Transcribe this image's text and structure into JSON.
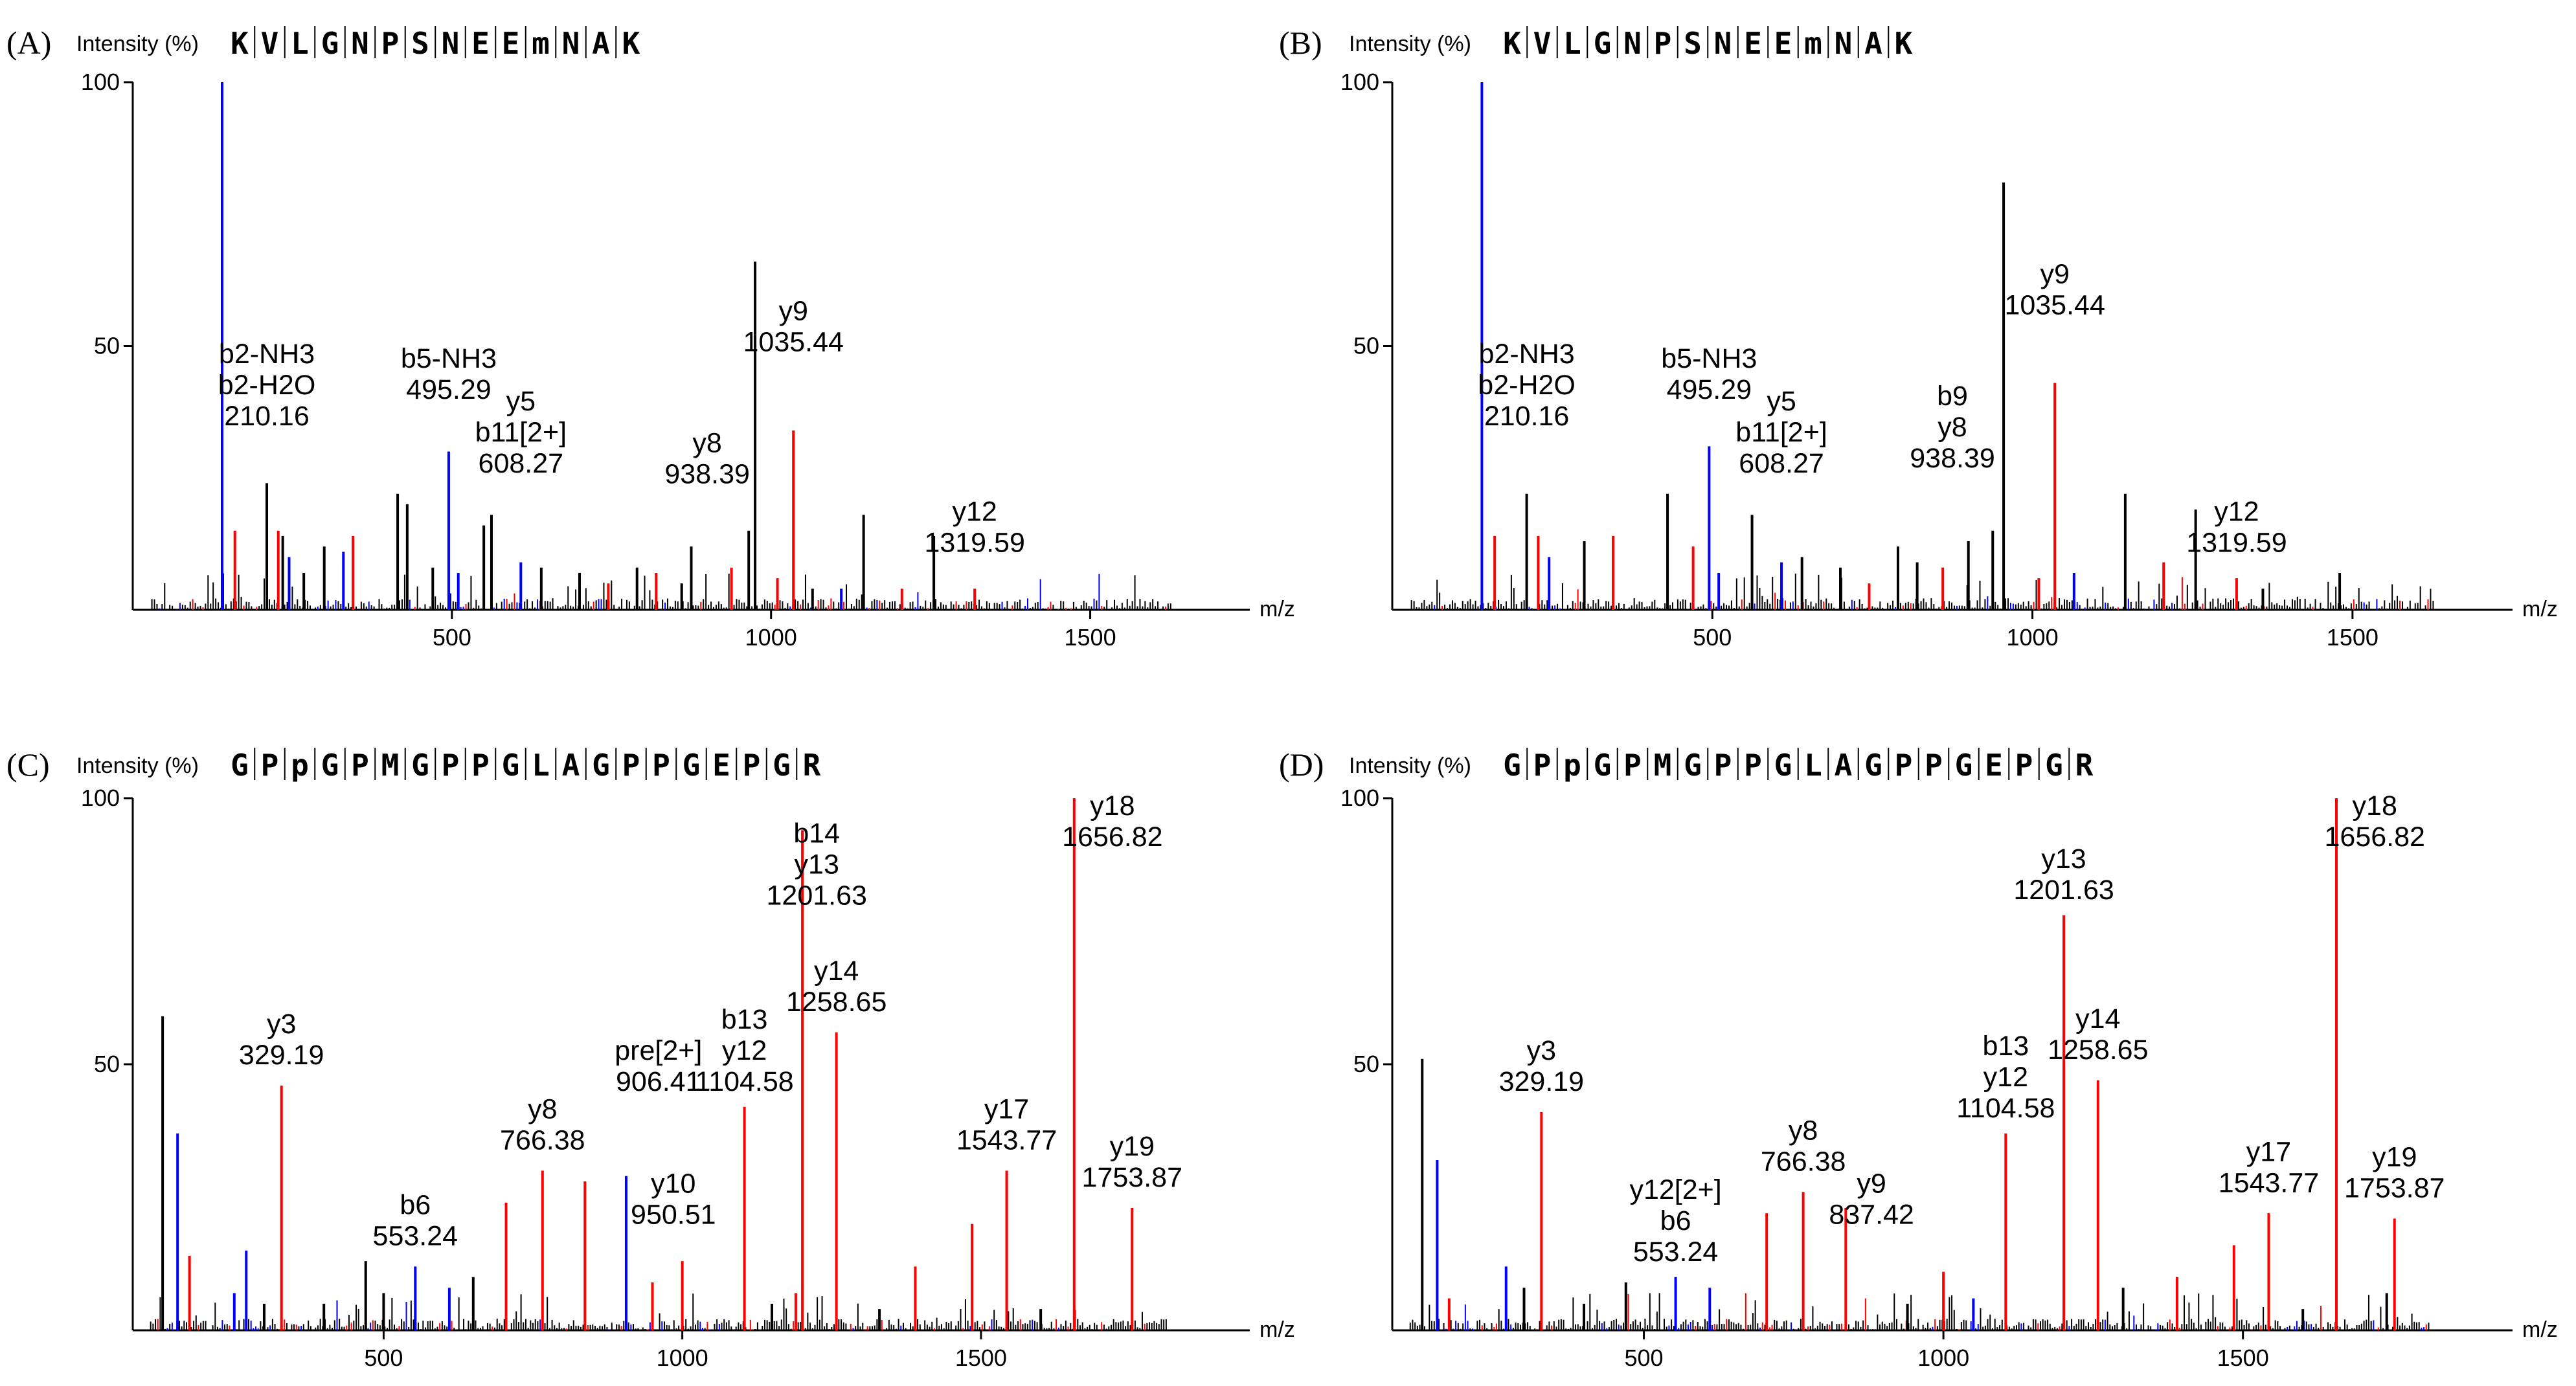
{
  "colors": {
    "b_ion": "#0000ff",
    "y_ion": "#ff0000",
    "unassigned": "#000000"
  },
  "chart_data": [
    {
      "panel_label": "(A)",
      "type": "bar",
      "ylabel": "Intensity (%)",
      "xlabel": "m/z",
      "sequence": [
        "K",
        "V",
        "L",
        "G",
        "N",
        "P",
        "S",
        "N",
        "E",
        "E",
        "m",
        "N",
        "A",
        "K"
      ],
      "xlim": [
        0,
        1750
      ],
      "ylim": [
        0,
        100
      ],
      "xticks": [
        500,
        1000,
        1500
      ],
      "yticks": [
        50,
        100
      ],
      "peaks": [
        {
          "mz": 140,
          "y": 100,
          "c": "b"
        },
        {
          "mz": 160,
          "y": 15,
          "c": "y"
        },
        {
          "mz": 210,
          "y": 24,
          "c": "k"
        },
        {
          "mz": 228,
          "y": 15,
          "c": "y"
        },
        {
          "mz": 235,
          "y": 14,
          "c": "k"
        },
        {
          "mz": 245,
          "y": 10,
          "c": "b"
        },
        {
          "mz": 268,
          "y": 7,
          "c": "k"
        },
        {
          "mz": 300,
          "y": 12,
          "c": "k"
        },
        {
          "mz": 330,
          "y": 11,
          "c": "b"
        },
        {
          "mz": 345,
          "y": 14,
          "c": "y"
        },
        {
          "mz": 415,
          "y": 22,
          "c": "k"
        },
        {
          "mz": 430,
          "y": 20,
          "c": "k"
        },
        {
          "mz": 470,
          "y": 8,
          "c": "k"
        },
        {
          "mz": 495,
          "y": 30,
          "c": "b"
        },
        {
          "mz": 510,
          "y": 7,
          "c": "b"
        },
        {
          "mz": 550,
          "y": 16,
          "c": "k"
        },
        {
          "mz": 562,
          "y": 18,
          "c": "k"
        },
        {
          "mz": 608,
          "y": 9,
          "c": "b"
        },
        {
          "mz": 640,
          "y": 8,
          "c": "k"
        },
        {
          "mz": 700,
          "y": 7,
          "c": "k"
        },
        {
          "mz": 745,
          "y": 5,
          "c": "y"
        },
        {
          "mz": 790,
          "y": 8,
          "c": "k"
        },
        {
          "mz": 820,
          "y": 7,
          "c": "y"
        },
        {
          "mz": 860,
          "y": 5,
          "c": "k"
        },
        {
          "mz": 875,
          "y": 12,
          "c": "k"
        },
        {
          "mz": 938,
          "y": 8,
          "c": "y"
        },
        {
          "mz": 965,
          "y": 15,
          "c": "k"
        },
        {
          "mz": 975,
          "y": 66,
          "c": "k"
        },
        {
          "mz": 1010,
          "y": 6,
          "c": "y"
        },
        {
          "mz": 1035,
          "y": 34,
          "c": "y"
        },
        {
          "mz": 1065,
          "y": 4,
          "c": "k"
        },
        {
          "mz": 1110,
          "y": 4,
          "c": "b"
        },
        {
          "mz": 1145,
          "y": 18,
          "c": "k"
        },
        {
          "mz": 1205,
          "y": 4,
          "c": "y"
        },
        {
          "mz": 1255,
          "y": 14,
          "c": "k"
        },
        {
          "mz": 1319,
          "y": 4,
          "c": "y"
        }
      ],
      "annotations": [
        {
          "lines": [
            "b2-NH3",
            "b2-H2O",
            "210.16"
          ],
          "mz": 210,
          "y": 35
        },
        {
          "lines": [
            "b5-NH3",
            "495.29"
          ],
          "mz": 495,
          "y": 40
        },
        {
          "lines": [
            "y5",
            "b11[2+]",
            "608.27"
          ],
          "mz": 608,
          "y": 26
        },
        {
          "lines": [
            "y8",
            "938.39"
          ],
          "mz": 900,
          "y": 24
        },
        {
          "lines": [
            "y9",
            "1035.44"
          ],
          "mz": 1035,
          "y": 49
        },
        {
          "lines": [
            "y12",
            "1319.59"
          ],
          "mz": 1319,
          "y": 11
        }
      ]
    },
    {
      "panel_label": "(B)",
      "type": "bar",
      "ylabel": "Intensity (%)",
      "xlabel": "m/z",
      "sequence": [
        "K",
        "V",
        "L",
        "G",
        "N",
        "P",
        "S",
        "N",
        "E",
        "E",
        "m",
        "N",
        "A",
        "K"
      ],
      "xlim": [
        0,
        1750
      ],
      "ylim": [
        0,
        100
      ],
      "xticks": [
        500,
        1000,
        1500
      ],
      "yticks": [
        50,
        100
      ],
      "peaks": [
        {
          "mz": 140,
          "y": 100,
          "c": "b"
        },
        {
          "mz": 160,
          "y": 14,
          "c": "y"
        },
        {
          "mz": 210,
          "y": 22,
          "c": "k"
        },
        {
          "mz": 228,
          "y": 14,
          "c": "y"
        },
        {
          "mz": 245,
          "y": 10,
          "c": "b"
        },
        {
          "mz": 300,
          "y": 13,
          "c": "k"
        },
        {
          "mz": 345,
          "y": 14,
          "c": "y"
        },
        {
          "mz": 430,
          "y": 22,
          "c": "k"
        },
        {
          "mz": 470,
          "y": 12,
          "c": "y"
        },
        {
          "mz": 495,
          "y": 31,
          "c": "b"
        },
        {
          "mz": 510,
          "y": 7,
          "c": "b"
        },
        {
          "mz": 562,
          "y": 18,
          "c": "k"
        },
        {
          "mz": 608,
          "y": 9,
          "c": "b"
        },
        {
          "mz": 640,
          "y": 10,
          "c": "k"
        },
        {
          "mz": 700,
          "y": 8,
          "c": "k"
        },
        {
          "mz": 745,
          "y": 5,
          "c": "y"
        },
        {
          "mz": 790,
          "y": 12,
          "c": "k"
        },
        {
          "mz": 820,
          "y": 9,
          "c": "k"
        },
        {
          "mz": 860,
          "y": 8,
          "c": "y"
        },
        {
          "mz": 938,
          "y": 15,
          "c": "k"
        },
        {
          "mz": 900,
          "y": 13,
          "c": "k"
        },
        {
          "mz": 955,
          "y": 81,
          "c": "k"
        },
        {
          "mz": 1010,
          "y": 6,
          "c": "y"
        },
        {
          "mz": 1035,
          "y": 43,
          "c": "y"
        },
        {
          "mz": 1065,
          "y": 7,
          "c": "b"
        },
        {
          "mz": 1145,
          "y": 22,
          "c": "k"
        },
        {
          "mz": 1205,
          "y": 9,
          "c": "y"
        },
        {
          "mz": 1255,
          "y": 19,
          "c": "k"
        },
        {
          "mz": 1319,
          "y": 6,
          "c": "y"
        },
        {
          "mz": 1360,
          "y": 4,
          "c": "k"
        },
        {
          "mz": 1480,
          "y": 7,
          "c": "k"
        }
      ],
      "annotations": [
        {
          "lines": [
            "b2-NH3",
            "b2-H2O",
            "210.16"
          ],
          "mz": 210,
          "y": 35
        },
        {
          "lines": [
            "b5-NH3",
            "495.29"
          ],
          "mz": 495,
          "y": 40
        },
        {
          "lines": [
            "y5",
            "b11[2+]",
            "608.27"
          ],
          "mz": 608,
          "y": 26
        },
        {
          "lines": [
            "b9",
            "y8",
            "938.39"
          ],
          "mz": 875,
          "y": 27
        },
        {
          "lines": [
            "y9",
            "1035.44"
          ],
          "mz": 1035,
          "y": 56
        },
        {
          "lines": [
            "y12",
            "1319.59"
          ],
          "mz": 1319,
          "y": 11
        }
      ]
    },
    {
      "panel_label": "(C)",
      "type": "bar",
      "ylabel": "Intensity (%)",
      "xlabel": "m/z",
      "sequence": [
        "G",
        "P",
        "p",
        "G",
        "P",
        "M",
        "G",
        "P",
        "P",
        "G",
        "L",
        "A",
        "G",
        "P",
        "P",
        "G",
        "E",
        "P",
        "G",
        "R"
      ],
      "xlim": [
        80,
        1950
      ],
      "ylim": [
        0,
        100
      ],
      "xticks": [
        500,
        1000,
        1500
      ],
      "yticks": [
        50,
        100
      ],
      "peaks": [
        {
          "mz": 130,
          "y": 59,
          "c": "k"
        },
        {
          "mz": 155,
          "y": 37,
          "c": "b"
        },
        {
          "mz": 175,
          "y": 14,
          "c": "y"
        },
        {
          "mz": 250,
          "y": 7,
          "c": "b"
        },
        {
          "mz": 270,
          "y": 15,
          "c": "b"
        },
        {
          "mz": 300,
          "y": 5,
          "c": "k"
        },
        {
          "mz": 329,
          "y": 46,
          "c": "y"
        },
        {
          "mz": 400,
          "y": 5,
          "c": "k"
        },
        {
          "mz": 470,
          "y": 13,
          "c": "k"
        },
        {
          "mz": 500,
          "y": 7,
          "c": "k"
        },
        {
          "mz": 553,
          "y": 12,
          "c": "b"
        },
        {
          "mz": 610,
          "y": 8,
          "c": "b"
        },
        {
          "mz": 650,
          "y": 10,
          "c": "k"
        },
        {
          "mz": 705,
          "y": 24,
          "c": "y"
        },
        {
          "mz": 766,
          "y": 30,
          "c": "y"
        },
        {
          "mz": 837,
          "y": 28,
          "c": "y"
        },
        {
          "mz": 906,
          "y": 29,
          "c": "b"
        },
        {
          "mz": 950,
          "y": 9,
          "c": "y"
        },
        {
          "mz": 1000,
          "y": 13,
          "c": "y"
        },
        {
          "mz": 1104,
          "y": 42,
          "c": "y"
        },
        {
          "mz": 1150,
          "y": 5,
          "c": "k"
        },
        {
          "mz": 1190,
          "y": 7,
          "c": "y"
        },
        {
          "mz": 1201,
          "y": 94,
          "c": "y"
        },
        {
          "mz": 1258,
          "y": 56,
          "c": "y"
        },
        {
          "mz": 1330,
          "y": 4,
          "c": "k"
        },
        {
          "mz": 1390,
          "y": 12,
          "c": "y"
        },
        {
          "mz": 1485,
          "y": 20,
          "c": "y"
        },
        {
          "mz": 1543,
          "y": 30,
          "c": "y"
        },
        {
          "mz": 1600,
          "y": 4,
          "c": "k"
        },
        {
          "mz": 1656,
          "y": 100,
          "c": "y"
        },
        {
          "mz": 1753,
          "y": 23,
          "c": "y"
        }
      ],
      "annotations": [
        {
          "lines": [
            "y3",
            "329.19"
          ],
          "mz": 329,
          "y": 50
        },
        {
          "lines": [
            "b6",
            "553.24"
          ],
          "mz": 553,
          "y": 16
        },
        {
          "lines": [
            "y8",
            "766.38"
          ],
          "mz": 766,
          "y": 34
        },
        {
          "lines": [
            "pre[2+]",
            "906.41"
          ],
          "mz": 960,
          "y": 45
        },
        {
          "lines": [
            "y10",
            "950.51"
          ],
          "mz": 985,
          "y": 20
        },
        {
          "lines": [
            "b13",
            "y12",
            "1104.58"
          ],
          "mz": 1104,
          "y": 45
        },
        {
          "lines": [
            "b14",
            "y13",
            "1201.63"
          ],
          "mz": 1225,
          "y": 80
        },
        {
          "lines": [
            "y14",
            "1258.65"
          ],
          "mz": 1258,
          "y": 60
        },
        {
          "lines": [
            "y17",
            "1543.77"
          ],
          "mz": 1543,
          "y": 34
        },
        {
          "lines": [
            "y18",
            "1656.82"
          ],
          "mz": 1720,
          "y": 91
        },
        {
          "lines": [
            "y19",
            "1753.87"
          ],
          "mz": 1753,
          "y": 27
        }
      ]
    },
    {
      "panel_label": "(D)",
      "type": "bar",
      "ylabel": "Intensity (%)",
      "xlabel": "m/z",
      "sequence": [
        "G",
        "P",
        "p",
        "G",
        "P",
        "M",
        "G",
        "P",
        "P",
        "G",
        "L",
        "A",
        "G",
        "P",
        "P",
        "G",
        "E",
        "P",
        "G",
        "R"
      ],
      "xlim": [
        80,
        1950
      ],
      "ylim": [
        0,
        100
      ],
      "xticks": [
        500,
        1000,
        1500
      ],
      "yticks": [
        50,
        100
      ],
      "peaks": [
        {
          "mz": 130,
          "y": 51,
          "c": "k"
        },
        {
          "mz": 155,
          "y": 32,
          "c": "b"
        },
        {
          "mz": 175,
          "y": 6,
          "c": "y"
        },
        {
          "mz": 270,
          "y": 12,
          "c": "b"
        },
        {
          "mz": 300,
          "y": 8,
          "c": "k"
        },
        {
          "mz": 329,
          "y": 41,
          "c": "y"
        },
        {
          "mz": 400,
          "y": 5,
          "c": "k"
        },
        {
          "mz": 470,
          "y": 9,
          "c": "k"
        },
        {
          "mz": 553,
          "y": 10,
          "c": "b"
        },
        {
          "mz": 610,
          "y": 8,
          "c": "b"
        },
        {
          "mz": 705,
          "y": 22,
          "c": "y"
        },
        {
          "mz": 766,
          "y": 26,
          "c": "y"
        },
        {
          "mz": 837,
          "y": 23,
          "c": "y"
        },
        {
          "mz": 940,
          "y": 5,
          "c": "k"
        },
        {
          "mz": 1000,
          "y": 11,
          "c": "y"
        },
        {
          "mz": 1050,
          "y": 6,
          "c": "b"
        },
        {
          "mz": 1104,
          "y": 37,
          "c": "y"
        },
        {
          "mz": 1201,
          "y": 78,
          "c": "y"
        },
        {
          "mz": 1258,
          "y": 47,
          "c": "y"
        },
        {
          "mz": 1300,
          "y": 8,
          "c": "k"
        },
        {
          "mz": 1390,
          "y": 10,
          "c": "y"
        },
        {
          "mz": 1485,
          "y": 16,
          "c": "y"
        },
        {
          "mz": 1543,
          "y": 22,
          "c": "y"
        },
        {
          "mz": 1600,
          "y": 4,
          "c": "k"
        },
        {
          "mz": 1656,
          "y": 100,
          "c": "y"
        },
        {
          "mz": 1740,
          "y": 7,
          "c": "k"
        },
        {
          "mz": 1753,
          "y": 21,
          "c": "y"
        }
      ],
      "annotations": [
        {
          "lines": [
            "y3",
            "329.19"
          ],
          "mz": 329,
          "y": 45
        },
        {
          "lines": [
            "y12[2+]",
            "b6",
            "553.24"
          ],
          "mz": 553,
          "y": 13
        },
        {
          "lines": [
            "y8",
            "766.38"
          ],
          "mz": 766,
          "y": 30
        },
        {
          "lines": [
            "y9",
            "837.42"
          ],
          "mz": 880,
          "y": 20
        },
        {
          "lines": [
            "b13",
            "y12",
            "1104.58"
          ],
          "mz": 1104,
          "y": 40
        },
        {
          "lines": [
            "y13",
            "1201.63"
          ],
          "mz": 1201,
          "y": 81
        },
        {
          "lines": [
            "y14",
            "1258.65"
          ],
          "mz": 1258,
          "y": 51
        },
        {
          "lines": [
            "y17",
            "1543.77"
          ],
          "mz": 1543,
          "y": 26
        },
        {
          "lines": [
            "y18",
            "1656.82"
          ],
          "mz": 1720,
          "y": 91
        },
        {
          "lines": [
            "y19",
            "1753.87"
          ],
          "mz": 1753,
          "y": 25
        }
      ]
    }
  ]
}
